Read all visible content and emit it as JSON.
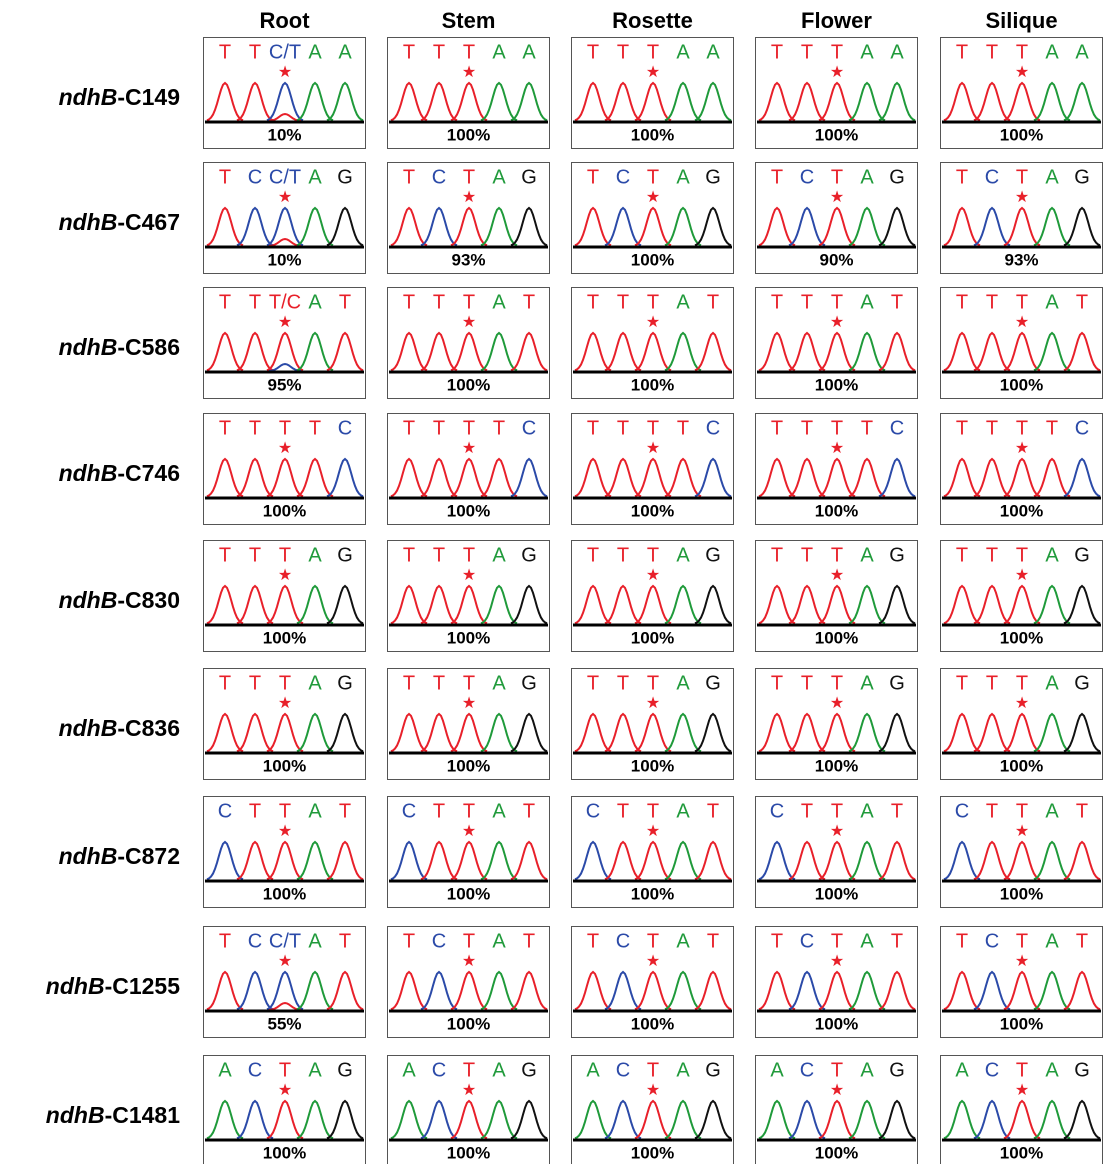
{
  "columns": [
    "Root",
    "Stem",
    "Rosette",
    "Flower",
    "Silique"
  ],
  "rows": [
    {
      "gene": "ndhB",
      "site": "-C149",
      "cells": [
        {
          "bases": [
            "T",
            "T",
            "C/T",
            "A",
            "A"
          ],
          "edit": "10%"
        },
        {
          "bases": [
            "T",
            "T",
            "T",
            "A",
            "A"
          ],
          "edit": "100%"
        },
        {
          "bases": [
            "T",
            "T",
            "T",
            "A",
            "A"
          ],
          "edit": "100%"
        },
        {
          "bases": [
            "T",
            "T",
            "T",
            "A",
            "A"
          ],
          "edit": "100%"
        },
        {
          "bases": [
            "T",
            "T",
            "T",
            "A",
            "A"
          ],
          "edit": "100%"
        }
      ]
    },
    {
      "gene": "ndhB",
      "site": "-C467",
      "cells": [
        {
          "bases": [
            "T",
            "C",
            "C/T",
            "A",
            "G"
          ],
          "edit": "10%"
        },
        {
          "bases": [
            "T",
            "C",
            "T",
            "A",
            "G"
          ],
          "edit": "93%"
        },
        {
          "bases": [
            "T",
            "C",
            "T",
            "A",
            "G"
          ],
          "edit": "100%"
        },
        {
          "bases": [
            "T",
            "C",
            "T",
            "A",
            "G"
          ],
          "edit": "90%"
        },
        {
          "bases": [
            "T",
            "C",
            "T",
            "A",
            "G"
          ],
          "edit": "93%"
        }
      ]
    },
    {
      "gene": "ndhB",
      "site": "-C586",
      "cells": [
        {
          "bases": [
            "T",
            "T",
            "T/C",
            "A",
            "T"
          ],
          "edit": "95%"
        },
        {
          "bases": [
            "T",
            "T",
            "T",
            "A",
            "T"
          ],
          "edit": "100%"
        },
        {
          "bases": [
            "T",
            "T",
            "T",
            "A",
            "T"
          ],
          "edit": "100%"
        },
        {
          "bases": [
            "T",
            "T",
            "T",
            "A",
            "T"
          ],
          "edit": "100%"
        },
        {
          "bases": [
            "T",
            "T",
            "T",
            "A",
            "T"
          ],
          "edit": "100%"
        }
      ]
    },
    {
      "gene": "ndhB",
      "site": "-C746",
      "cells": [
        {
          "bases": [
            "T",
            "T",
            "T",
            "T",
            "C"
          ],
          "edit": "100%"
        },
        {
          "bases": [
            "T",
            "T",
            "T",
            "T",
            "C"
          ],
          "edit": "100%"
        },
        {
          "bases": [
            "T",
            "T",
            "T",
            "T",
            "C"
          ],
          "edit": "100%"
        },
        {
          "bases": [
            "T",
            "T",
            "T",
            "T",
            "C"
          ],
          "edit": "100%"
        },
        {
          "bases": [
            "T",
            "T",
            "T",
            "T",
            "C"
          ],
          "edit": "100%"
        }
      ]
    },
    {
      "gene": "ndhB",
      "site": "-C830",
      "cells": [
        {
          "bases": [
            "T",
            "T",
            "T",
            "A",
            "G"
          ],
          "edit": "100%"
        },
        {
          "bases": [
            "T",
            "T",
            "T",
            "A",
            "G"
          ],
          "edit": "100%"
        },
        {
          "bases": [
            "T",
            "T",
            "T",
            "A",
            "G"
          ],
          "edit": "100%"
        },
        {
          "bases": [
            "T",
            "T",
            "T",
            "A",
            "G"
          ],
          "edit": "100%"
        },
        {
          "bases": [
            "T",
            "T",
            "T",
            "A",
            "G"
          ],
          "edit": "100%"
        }
      ]
    },
    {
      "gene": "ndhB",
      "site": "-C836",
      "cells": [
        {
          "bases": [
            "T",
            "T",
            "T",
            "A",
            "G"
          ],
          "edit": "100%"
        },
        {
          "bases": [
            "T",
            "T",
            "T",
            "A",
            "G"
          ],
          "edit": "100%"
        },
        {
          "bases": [
            "T",
            "T",
            "T",
            "A",
            "G"
          ],
          "edit": "100%"
        },
        {
          "bases": [
            "T",
            "T",
            "T",
            "A",
            "G"
          ],
          "edit": "100%"
        },
        {
          "bases": [
            "T",
            "T",
            "T",
            "A",
            "G"
          ],
          "edit": "100%"
        }
      ]
    },
    {
      "gene": "ndhB",
      "site": "-C872",
      "cells": [
        {
          "bases": [
            "C",
            "T",
            "T",
            "A",
            "T"
          ],
          "edit": "100%"
        },
        {
          "bases": [
            "C",
            "T",
            "T",
            "A",
            "T"
          ],
          "edit": "100%"
        },
        {
          "bases": [
            "C",
            "T",
            "T",
            "A",
            "T"
          ],
          "edit": "100%"
        },
        {
          "bases": [
            "C",
            "T",
            "T",
            "A",
            "T"
          ],
          "edit": "100%"
        },
        {
          "bases": [
            "C",
            "T",
            "T",
            "A",
            "T"
          ],
          "edit": "100%"
        }
      ]
    },
    {
      "gene": "ndhB",
      "site": "-C1255",
      "cells": [
        {
          "bases": [
            "T",
            "C",
            "C/T",
            "A",
            "T"
          ],
          "edit": "55%"
        },
        {
          "bases": [
            "T",
            "C",
            "T",
            "A",
            "T"
          ],
          "edit": "100%"
        },
        {
          "bases": [
            "T",
            "C",
            "T",
            "A",
            "T"
          ],
          "edit": "100%"
        },
        {
          "bases": [
            "T",
            "C",
            "T",
            "A",
            "T"
          ],
          "edit": "100%"
        },
        {
          "bases": [
            "T",
            "C",
            "T",
            "A",
            "T"
          ],
          "edit": "100%"
        }
      ]
    },
    {
      "gene": "ndhB",
      "site": "-C1481",
      "cells": [
        {
          "bases": [
            "A",
            "C",
            "T",
            "A",
            "G"
          ],
          "edit": "100%"
        },
        {
          "bases": [
            "A",
            "C",
            "T",
            "A",
            "G"
          ],
          "edit": "100%"
        },
        {
          "bases": [
            "A",
            "C",
            "T",
            "A",
            "G"
          ],
          "edit": "100%"
        },
        {
          "bases": [
            "A",
            "C",
            "T",
            "A",
            "G"
          ],
          "edit": "100%"
        },
        {
          "bases": [
            "A",
            "C",
            "T",
            "A",
            "G"
          ],
          "edit": "100%"
        }
      ]
    }
  ]
}
